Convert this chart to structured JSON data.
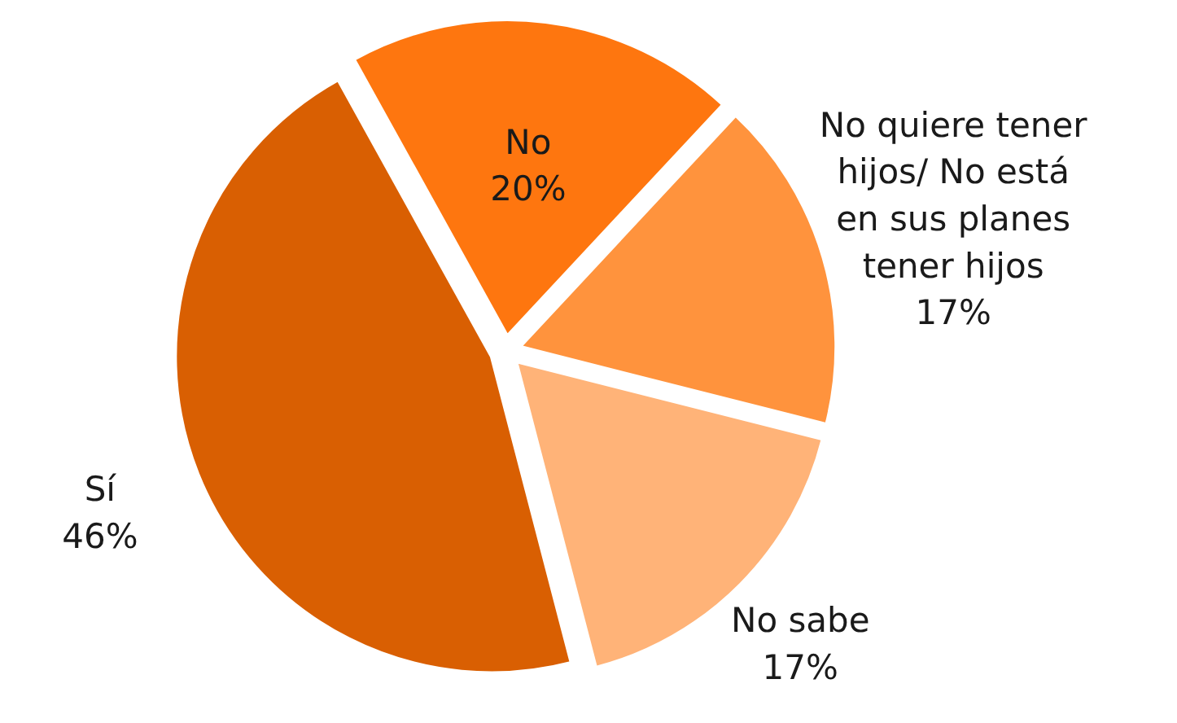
{
  "chart_data": {
    "type": "pie",
    "categories": [
      "No",
      "No quiere tener hijos/ No está en sus planes tener hijos",
      "No sabe",
      "Sí"
    ],
    "values": [
      20,
      17,
      17,
      46
    ],
    "value_labels": [
      "20%",
      "17%",
      "17%",
      "46%"
    ],
    "colors": [
      "#fe760f",
      "#ff933d",
      "#ffb378",
      "#d95f02"
    ]
  }
}
